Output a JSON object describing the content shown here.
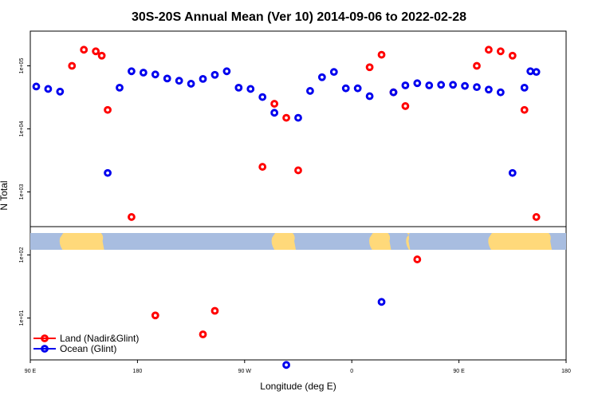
{
  "chart_data": {
    "type": "scatter",
    "title": "30S-20S Annual Mean (Ver 10)   2014-09-06 to 2022-02-28",
    "xlabel": "Longitude (deg E)",
    "ylabel": "N Total",
    "x_scale": "custom longitude axis, 90 E through 180 to 180",
    "y_scale": "log",
    "x_ticks": [
      "90 E",
      "180",
      "90 W",
      "0",
      "90 E",
      "180"
    ],
    "y_ticks": [
      "1e+01",
      "1e+02",
      "1e+03",
      "1e+04",
      "1e+05"
    ],
    "grid": false,
    "legend_position": "bottom-left",
    "colors": {
      "land": "#ff0000",
      "ocean": "#0000ee",
      "land_map": "#ffd97a",
      "ocean_map": "#a8bde0"
    },
    "series": [
      {
        "name": "Land (Nadir&Glint)",
        "x": [
          -265,
          -255,
          -245,
          -235,
          -225,
          -215,
          -210,
          -205,
          -195,
          -185,
          -175,
          -165,
          -155,
          -145,
          -135,
          -125,
          -115,
          -105,
          -95,
          -85,
          -75,
          -65,
          -55,
          -45,
          -35,
          -25,
          -15,
          -5,
          5,
          15,
          25,
          35,
          45,
          55,
          65,
          75,
          85,
          95,
          105,
          115,
          125,
          135,
          145,
          150,
          155,
          165,
          175
        ],
        "y": [
          null,
          null,
          null,
          100000,
          180000,
          170000,
          145000,
          20000,
          null,
          400,
          null,
          11,
          null,
          null,
          null,
          5.5,
          13,
          null,
          null,
          null,
          2500,
          25000,
          15000,
          2200,
          null,
          null,
          null,
          null,
          null,
          95000,
          150000,
          38000,
          23000,
          85,
          null,
          null,
          null,
          null,
          100000,
          180000,
          170000,
          145000,
          20000,
          null,
          400,
          null,
          null
        ]
      },
      {
        "name": "Ocean (Glint)",
        "x": [
          -265,
          -255,
          -245,
          -235,
          -225,
          -215,
          -210,
          -205,
          -195,
          -185,
          -175,
          -165,
          -155,
          -145,
          -135,
          -125,
          -115,
          -105,
          -95,
          -85,
          -75,
          -65,
          -55,
          -45,
          -35,
          -25,
          -15,
          -5,
          5,
          15,
          25,
          35,
          45,
          55,
          65,
          75,
          85,
          95,
          105,
          115,
          125,
          135,
          145,
          150,
          155,
          165,
          175
        ],
        "y": [
          47000,
          43000,
          39000,
          null,
          null,
          null,
          null,
          2000,
          45000,
          82000,
          78000,
          73000,
          63000,
          58000,
          52000,
          62000,
          72000,
          82000,
          45000,
          43000,
          32000,
          18000,
          1.8,
          15000,
          40000,
          66000,
          80000,
          44000,
          44000,
          33000,
          18,
          38000,
          49000,
          53000,
          49000,
          50000,
          50000,
          48000,
          46000,
          42000,
          38000,
          2000,
          45000,
          82000,
          80000,
          null,
          null
        ]
      }
    ]
  }
}
